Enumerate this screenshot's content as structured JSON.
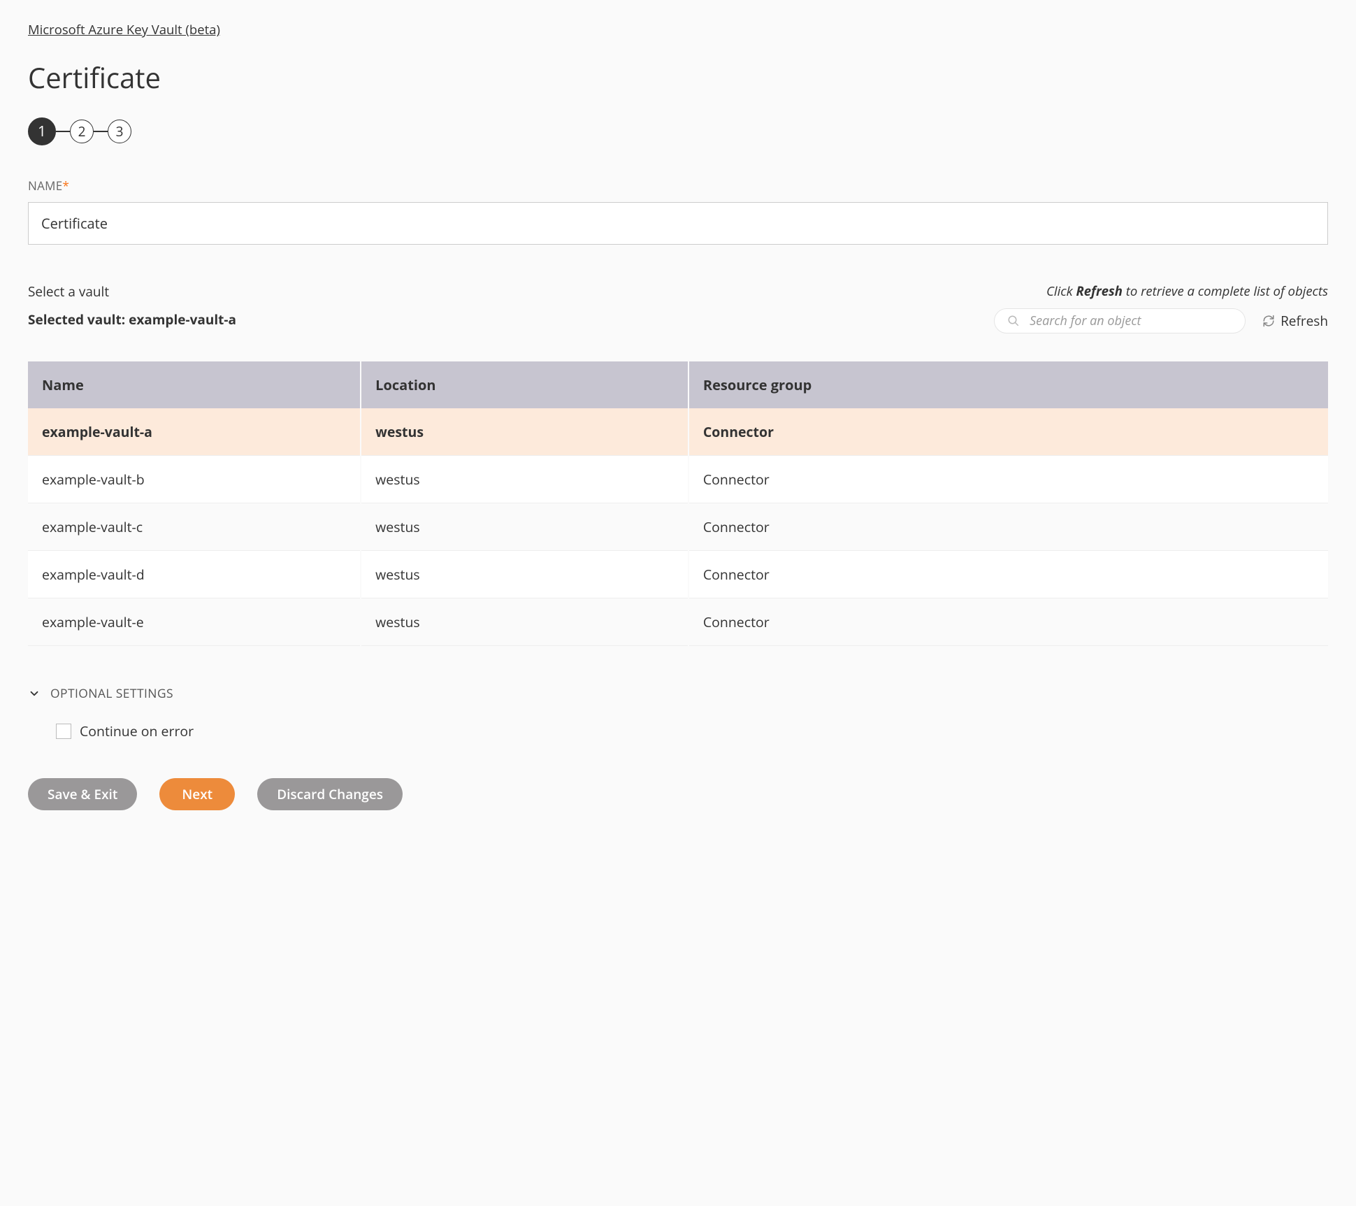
{
  "breadcrumb": "Microsoft Azure Key Vault (beta)",
  "pageTitle": "Certificate",
  "stepper": {
    "steps": [
      "1",
      "2",
      "3"
    ],
    "activeIndex": 0
  },
  "nameField": {
    "label": "NAME",
    "required": true,
    "value": "Certificate"
  },
  "vaultSection": {
    "selectLabel": "Select a vault",
    "selectedPrefix": "Selected vault: ",
    "selectedVault": "example-vault-a",
    "hintPrefix": "Click ",
    "hintBold": "Refresh",
    "hintSuffix": " to retrieve a complete list of objects",
    "searchPlaceholder": "Search for an object",
    "refreshLabel": "Refresh",
    "columns": [
      "Name",
      "Location",
      "Resource group"
    ],
    "rows": [
      {
        "name": "example-vault-a",
        "location": "westus",
        "resourceGroup": "Connector",
        "selected": true
      },
      {
        "name": "example-vault-b",
        "location": "westus",
        "resourceGroup": "Connector",
        "selected": false
      },
      {
        "name": "example-vault-c",
        "location": "westus",
        "resourceGroup": "Connector",
        "selected": false
      },
      {
        "name": "example-vault-d",
        "location": "westus",
        "resourceGroup": "Connector",
        "selected": false
      },
      {
        "name": "example-vault-e",
        "location": "westus",
        "resourceGroup": "Connector",
        "selected": false
      }
    ]
  },
  "optional": {
    "heading": "OPTIONAL SETTINGS",
    "continueOnError": "Continue on error",
    "continueOnErrorChecked": false
  },
  "buttons": {
    "saveExit": "Save & Exit",
    "next": "Next",
    "discard": "Discard Changes"
  },
  "colors": {
    "accent": "#ed8b3b",
    "headerBg": "#c7c5d0",
    "selectedRowBg": "#fdeadb",
    "grayBtn": "#9a9899"
  }
}
